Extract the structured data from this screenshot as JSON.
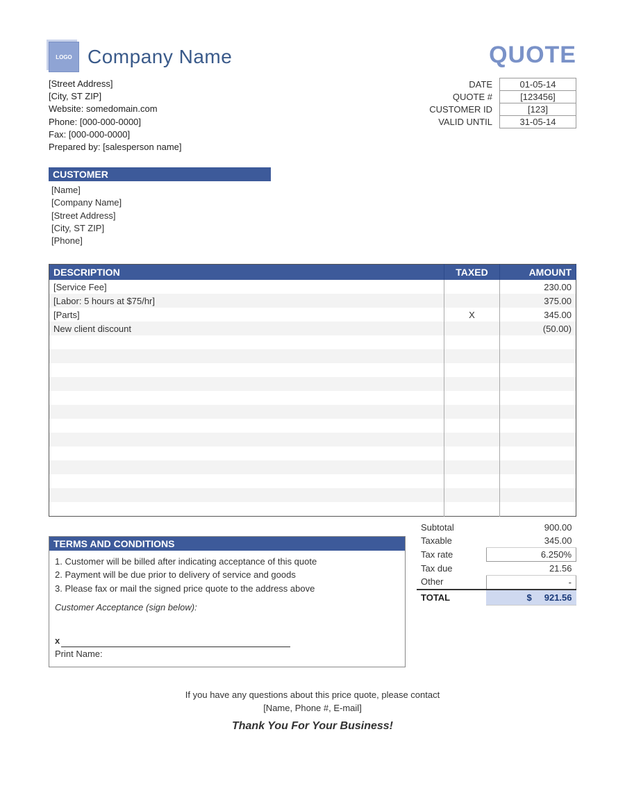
{
  "colors": {
    "header_bg": "#3d5a9a",
    "header_text": "#ffffff",
    "accent_light": "#7a92c8",
    "company_text": "#3a5a8a",
    "stripe_bg": "#f3f3f3",
    "total_bg": "#cfd9f0",
    "border": "#888888"
  },
  "logo_text": "LOGO",
  "company": {
    "name": "Company Name",
    "street": "[Street Address]",
    "city": "[City, ST  ZIP]",
    "website_label": "Website:",
    "website": "somedomain.com",
    "phone_label": "Phone:",
    "phone": "[000-000-0000]",
    "fax_label": "Fax:",
    "fax": "[000-000-0000]",
    "prepared_label": "Prepared by:",
    "prepared_by": "[salesperson name]"
  },
  "doc_title": "QUOTE",
  "meta": {
    "date_label": "DATE",
    "date": "01-05-14",
    "quote_label": "QUOTE #",
    "quote": "[123456]",
    "customer_id_label": "CUSTOMER ID",
    "customer_id": "[123]",
    "valid_label": "VALID UNTIL",
    "valid": "31-05-14"
  },
  "customer_header": "CUSTOMER",
  "customer": {
    "name": "[Name]",
    "company": "[Company Name]",
    "street": "[Street Address]",
    "city": "[City, ST  ZIP]",
    "phone": "[Phone]"
  },
  "columns": {
    "description": "DESCRIPTION",
    "taxed": "TAXED",
    "amount": "AMOUNT"
  },
  "items": [
    {
      "desc": "[Service Fee]",
      "taxed": "",
      "amount": "230.00"
    },
    {
      "desc": "[Labor: 5 hours at $75/hr]",
      "taxed": "",
      "amount": "375.00"
    },
    {
      "desc": "[Parts]",
      "taxed": "X",
      "amount": "345.00"
    },
    {
      "desc": "New client discount",
      "taxed": "",
      "amount": "(50.00)"
    }
  ],
  "empty_row_count": 13,
  "terms_header": "TERMS AND CONDITIONS",
  "terms": [
    "1. Customer will be billed after indicating acceptance of this quote",
    "2. Payment will be due prior to delivery of service and goods",
    "3. Please fax or mail the signed price quote to the address above"
  ],
  "acceptance_label": "Customer Acceptance (sign below):",
  "sign_x": "x",
  "print_name_label": "Print Name:",
  "totals": {
    "subtotal_label": "Subtotal",
    "subtotal": "900.00",
    "taxable_label": "Taxable",
    "taxable": "345.00",
    "taxrate_label": "Tax rate",
    "taxrate": "6.250%",
    "taxdue_label": "Tax due",
    "taxdue": "21.56",
    "other_label": "Other",
    "other": "-",
    "total_label": "TOTAL",
    "currency": "$",
    "total": "921.56"
  },
  "footer": {
    "line1": "If you have any questions about this price quote, please contact",
    "line2": "[Name, Phone #, E-mail]",
    "thanks": "Thank You For Your Business!"
  }
}
